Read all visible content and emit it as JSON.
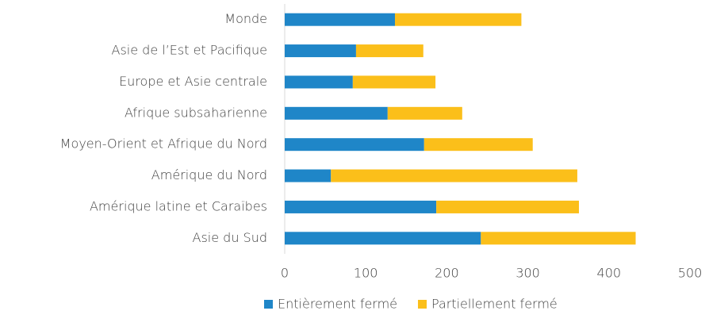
{
  "chart_data": {
    "type": "stacked-barh",
    "categories": [
      "Monde",
      "Asie de l’Est et Pacifique",
      "Europe et Asie centrale",
      "Afrique subsaharienne",
      "Moyen-Orient et Afrique du Nord",
      "Amérique du Nord",
      "Amérique latine et Caraïbes",
      "Asie du Sud"
    ],
    "series": [
      {
        "name": "Entièrement fermé",
        "color": "#1f86c8",
        "values": [
          136,
          88,
          84,
          127,
          172,
          57,
          187,
          242
        ]
      },
      {
        "name": "Partiellement fermé",
        "color": "#fbbf1a",
        "values": [
          156,
          83,
          102,
          92,
          134,
          304,
          176,
          191
        ]
      }
    ],
    "xlim": [
      0,
      500
    ],
    "xticks": [
      0,
      100,
      200,
      300,
      400,
      500
    ],
    "grid": false,
    "legend": "bottom"
  }
}
